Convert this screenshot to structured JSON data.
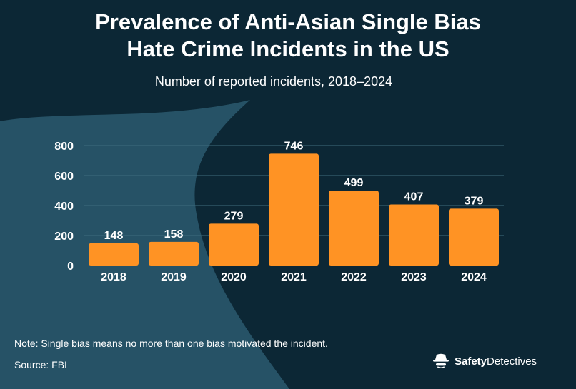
{
  "header": {
    "title_line1": "Prevalence of Anti-Asian Single Bias",
    "title_line2": "Hate Crime Incidents in the US",
    "subtitle": "Number of reported incidents, 2018–2024"
  },
  "chart_data": {
    "type": "bar",
    "categories": [
      "2018",
      "2019",
      "2020",
      "2021",
      "2022",
      "2023",
      "2024"
    ],
    "values": [
      148,
      158,
      279,
      746,
      499,
      407,
      379
    ],
    "yticks": [
      "0",
      "200",
      "400",
      "600",
      "800"
    ],
    "ylim": [
      0,
      800
    ],
    "grid": true,
    "data_labels": true,
    "bar_color": "#ff9324",
    "grid_color": "#3f6c7d"
  },
  "footer": {
    "note": "Note: Single bias means no more than one bias motivated the incident.",
    "source": "Source: FBI"
  },
  "brand": {
    "name_bold": "Safety",
    "name_regular": "Detectives",
    "icon": "detective-icon"
  },
  "colors": {
    "background_dark": "#0c2735",
    "background_light": "#2b5a6e",
    "text": "#ffffff"
  }
}
